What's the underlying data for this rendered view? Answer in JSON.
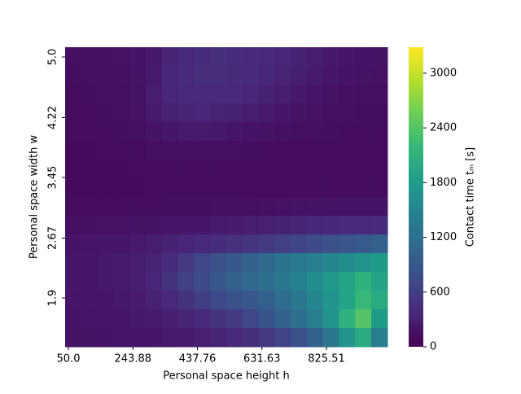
{
  "chart_data": {
    "type": "heatmap",
    "xlabel": "Personal space height h",
    "ylabel": "Personal space width w",
    "colorbar_label": "Contact time tₘ [s]",
    "xlim": [
      40.2,
      1009
    ],
    "ylim": [
      1.272,
      5.126
    ],
    "xticks": [
      {
        "value": 50,
        "label": "50.0"
      },
      243.88,
      437.76,
      631.63,
      825.51
    ],
    "yticks": [
      {
        "value": 5,
        "label": "5.0"
      },
      4.22,
      3.45,
      2.67,
      1.9
    ],
    "clim": [
      0,
      3285
    ],
    "cticks": [
      0,
      600,
      1200,
      1800,
      2400,
      3000
    ],
    "colormap": "viridis",
    "values": [
      [
        120,
        130,
        140,
        150,
        180,
        220,
        330,
        380,
        420,
        440,
        420,
        400,
        380,
        340,
        300,
        260,
        220,
        200,
        180,
        170
      ],
      [
        110,
        120,
        130,
        140,
        170,
        240,
        350,
        400,
        430,
        430,
        410,
        390,
        360,
        320,
        280,
        240,
        200,
        180,
        160,
        150
      ],
      [
        100,
        110,
        120,
        130,
        160,
        260,
        340,
        380,
        400,
        390,
        370,
        340,
        300,
        260,
        220,
        190,
        160,
        140,
        130,
        120
      ],
      [
        100,
        100,
        110,
        120,
        150,
        230,
        300,
        330,
        340,
        320,
        300,
        270,
        230,
        200,
        170,
        150,
        130,
        120,
        110,
        110
      ],
      [
        90,
        90,
        100,
        110,
        130,
        170,
        210,
        230,
        230,
        220,
        200,
        180,
        160,
        140,
        130,
        120,
        110,
        100,
        100,
        100
      ],
      [
        80,
        80,
        90,
        90,
        100,
        120,
        130,
        140,
        140,
        130,
        120,
        110,
        100,
        100,
        90,
        90,
        90,
        90,
        90,
        90
      ],
      [
        80,
        80,
        80,
        80,
        90,
        90,
        100,
        100,
        100,
        100,
        90,
        90,
        90,
        90,
        90,
        90,
        90,
        90,
        90,
        90
      ],
      [
        80,
        80,
        80,
        80,
        80,
        90,
        90,
        90,
        90,
        90,
        90,
        90,
        90,
        90,
        90,
        100,
        100,
        100,
        100,
        100
      ],
      [
        90,
        90,
        90,
        90,
        100,
        100,
        110,
        110,
        110,
        120,
        120,
        130,
        140,
        150,
        160,
        170,
        170,
        180,
        180,
        180
      ],
      [
        130,
        140,
        150,
        150,
        160,
        170,
        190,
        200,
        210,
        230,
        250,
        270,
        290,
        310,
        330,
        350,
        360,
        370,
        380,
        390
      ],
      [
        180,
        190,
        200,
        210,
        230,
        260,
        300,
        340,
        380,
        420,
        460,
        500,
        560,
        620,
        680,
        740,
        800,
        860,
        920,
        980
      ],
      [
        200,
        210,
        220,
        240,
        270,
        320,
        420,
        560,
        700,
        800,
        900,
        1000,
        1100,
        1250,
        1350,
        1400,
        1500,
        1600,
        1700,
        1800
      ],
      [
        200,
        210,
        220,
        240,
        280,
        340,
        480,
        620,
        760,
        900,
        1000,
        1100,
        1200,
        1300,
        1450,
        1600,
        1750,
        1900,
        2100,
        1900
      ],
      [
        190,
        200,
        210,
        220,
        250,
        300,
        380,
        480,
        600,
        720,
        820,
        900,
        1000,
        1150,
        1300,
        1500,
        1700,
        1900,
        2200,
        2000
      ],
      [
        180,
        190,
        200,
        210,
        220,
        240,
        280,
        330,
        400,
        480,
        560,
        700,
        850,
        1000,
        1200,
        1400,
        1700,
        2100,
        2400,
        1800
      ],
      [
        160,
        170,
        180,
        190,
        200,
        210,
        230,
        250,
        290,
        330,
        380,
        450,
        550,
        650,
        800,
        1000,
        1300,
        1700,
        2000,
        1400
      ]
    ]
  }
}
